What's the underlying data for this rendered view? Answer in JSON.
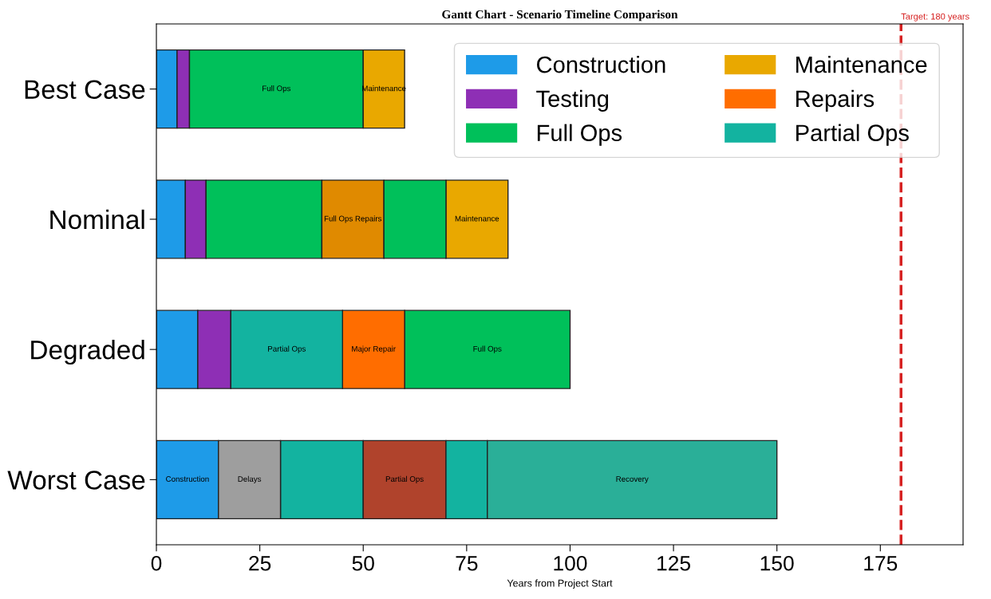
{
  "chart_data": {
    "type": "bar",
    "orientation": "horizontal",
    "title": "Gantt Chart - Scenario Timeline Comparison",
    "xlabel": "Years from Project Start",
    "categories": [
      "Best Case",
      "Nominal",
      "Degraded",
      "Worst Case"
    ],
    "series": [
      {
        "name": "Construction",
        "color": "#1e9be8",
        "values": [
          5,
          7,
          10,
          15
        ],
        "base": [
          0,
          0,
          0,
          0
        ],
        "value_labels": [
          null,
          null,
          null,
          "Construction"
        ]
      },
      {
        "name": "Testing",
        "color": "#8e2fb5",
        "values": [
          3,
          5,
          8,
          null
        ],
        "base": [
          5,
          7,
          10,
          null
        ]
      },
      {
        "name": "Full Ops",
        "color": "#00c05a",
        "values": [
          42,
          28,
          40,
          null
        ],
        "base": [
          8,
          12,
          60,
          null
        ],
        "value_labels": [
          "Full Ops",
          null,
          "Full Ops",
          null
        ]
      },
      {
        "name": "Maintenance",
        "color": "#e9a800",
        "values": [
          10,
          15,
          null,
          null
        ],
        "base": [
          50,
          70,
          null,
          null
        ],
        "value_labels": [
          "Maintenance",
          "Maintenance",
          null,
          null
        ]
      },
      {
        "name": "Repairs",
        "color": "#ff6d00",
        "colors": [
          "#ff6d00",
          "#e08a00",
          "#ff6d00",
          "#ff6d00"
        ],
        "values": [
          null,
          15,
          15,
          null
        ],
        "base": [
          null,
          40,
          45,
          null
        ],
        "value_labels": [
          null,
          "Full Ops Repairs",
          "Major Repair",
          null
        ]
      },
      {
        "name": "Partial Ops",
        "color": "#13b3a0",
        "values": [
          null,
          null,
          27,
          20
        ],
        "base": [
          null,
          null,
          18,
          30
        ],
        "value_labels": [
          null,
          null,
          "Partial Ops",
          null
        ]
      },
      {
        "colors": [
          "#00c05a",
          "#00c05a",
          "#00c05a",
          "#9e9e9e"
        ],
        "values": [
          null,
          15,
          null,
          15
        ],
        "base": [
          null,
          55,
          null,
          15
        ],
        "value_labels": [
          null,
          null,
          null,
          "Delays"
        ]
      },
      {
        "color": "#b0432c",
        "values": [
          null,
          null,
          null,
          20
        ],
        "base": [
          null,
          null,
          null,
          50
        ],
        "value_labels": [
          null,
          null,
          null,
          "Partial Ops"
        ]
      },
      {
        "color": "#13b3a0",
        "values": [
          null,
          null,
          null,
          10
        ],
        "base": [
          null,
          null,
          null,
          70
        ]
      },
      {
        "color": "#2aaf98",
        "values": [
          null,
          null,
          null,
          70
        ],
        "base": [
          null,
          null,
          null,
          80
        ],
        "value_labels": [
          null,
          null,
          null,
          "Recovery"
        ]
      }
    ],
    "ref_lines": [
      {
        "axis": "x",
        "value": 180,
        "label": "Target: 180 years",
        "color": "#d62020",
        "line_style": "dashed"
      }
    ],
    "xlim": [
      0,
      195
    ],
    "xticks": [
      0,
      25,
      50,
      75,
      100,
      125,
      150,
      175
    ],
    "legend": "top right",
    "grid": false
  }
}
